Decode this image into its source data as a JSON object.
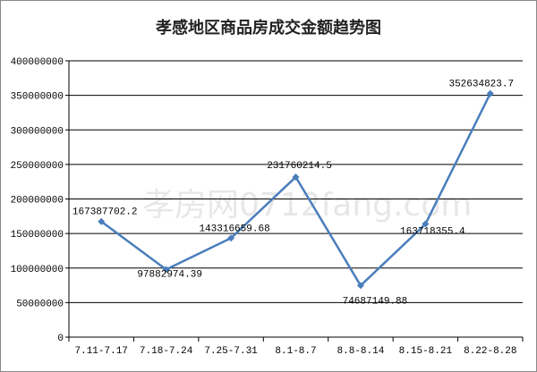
{
  "chart_data": {
    "type": "line",
    "title": "孝感地区商品房成交金额趋势图",
    "categories": [
      "7.11-7.17",
      "7.18-7.24",
      "7.25-7.31",
      "8.1-8.7",
      "8.8-8.14",
      "8.15-8.21",
      "8.22-8.28"
    ],
    "series": [
      {
        "values": [
          167387702.2,
          97882974.39,
          143316659.68,
          231760214.5,
          74687149.88,
          163718355.4,
          352634823.7
        ],
        "value_labels": [
          "167387702.2",
          "97882974.39",
          "143316659.68",
          "231760214.5",
          "74687149.88",
          "163718355.4",
          "352634823.7"
        ]
      }
    ],
    "y_ticks": [
      "0",
      "50000000",
      "100000000",
      "150000000",
      "200000000",
      "250000000",
      "300000000",
      "350000000",
      "400000000"
    ],
    "ylim": [
      0,
      400000000
    ],
    "grid": true,
    "line_color": "#4a7ebb",
    "watermark": "孝房网0712fang.com"
  }
}
